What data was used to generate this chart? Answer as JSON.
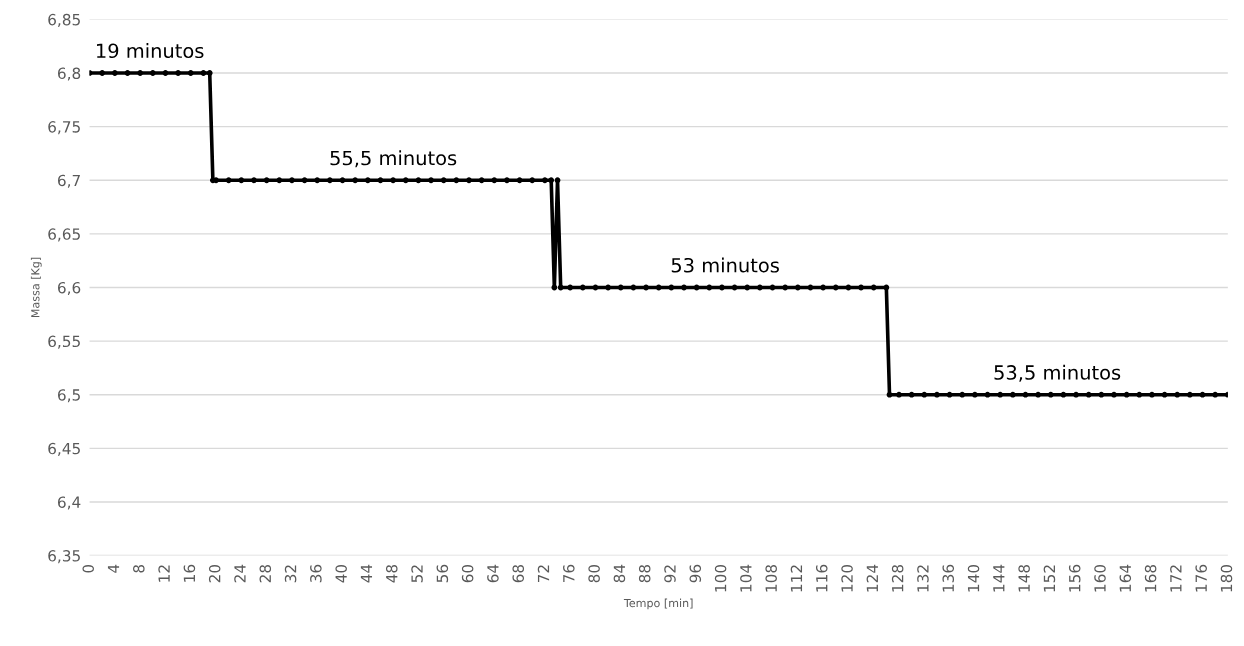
{
  "chart_data": {
    "type": "line",
    "xlabel": "Tempo [min]",
    "ylabel": "Massa [Kg]",
    "series": [
      {
        "color": "#000000",
        "x": [
          0,
          2,
          4,
          6,
          8,
          10,
          12,
          14,
          16,
          18,
          19,
          19.5,
          20,
          22,
          24,
          26,
          28,
          30,
          32,
          34,
          36,
          38,
          40,
          42,
          44,
          46,
          48,
          50,
          52,
          54,
          56,
          58,
          60,
          62,
          64,
          66,
          68,
          70,
          72,
          73,
          73.5,
          74,
          74.5,
          76,
          78,
          80,
          82,
          84,
          86,
          88,
          90,
          92,
          94,
          96,
          98,
          100,
          102,
          104,
          106,
          108,
          110,
          112,
          114,
          116,
          118,
          120,
          122,
          124,
          126,
          126.5,
          128,
          130,
          132,
          134,
          136,
          138,
          140,
          142,
          144,
          146,
          148,
          150,
          152,
          154,
          156,
          158,
          160,
          162,
          164,
          166,
          168,
          170,
          172,
          174,
          176,
          178,
          180
        ],
        "values": [
          6.8,
          6.8,
          6.8,
          6.8,
          6.8,
          6.8,
          6.8,
          6.8,
          6.8,
          6.8,
          6.8,
          6.7,
          6.7,
          6.7,
          6.7,
          6.7,
          6.7,
          6.7,
          6.7,
          6.7,
          6.7,
          6.7,
          6.7,
          6.7,
          6.7,
          6.7,
          6.7,
          6.7,
          6.7,
          6.7,
          6.7,
          6.7,
          6.7,
          6.7,
          6.7,
          6.7,
          6.7,
          6.7,
          6.7,
          6.7,
          6.6,
          6.7,
          6.6,
          6.6,
          6.6,
          6.6,
          6.6,
          6.6,
          6.6,
          6.6,
          6.6,
          6.6,
          6.6,
          6.6,
          6.6,
          6.6,
          6.6,
          6.6,
          6.6,
          6.6,
          6.6,
          6.6,
          6.6,
          6.6,
          6.6,
          6.6,
          6.6,
          6.6,
          6.6,
          6.5,
          6.5,
          6.5,
          6.5,
          6.5,
          6.5,
          6.5,
          6.5,
          6.5,
          6.5,
          6.5,
          6.5,
          6.5,
          6.5,
          6.5,
          6.5,
          6.5,
          6.5,
          6.5,
          6.5,
          6.5,
          6.5,
          6.5,
          6.5,
          6.5,
          6.5,
          6.5,
          6.5
        ]
      }
    ],
    "xlim": [
      0,
      180
    ],
    "xticks": [
      0,
      4,
      8,
      12,
      16,
      20,
      24,
      28,
      32,
      36,
      40,
      44,
      48,
      52,
      56,
      60,
      64,
      68,
      72,
      76,
      80,
      84,
      88,
      92,
      96,
      100,
      104,
      108,
      112,
      116,
      120,
      124,
      128,
      132,
      136,
      140,
      144,
      148,
      152,
      156,
      160,
      164,
      168,
      172,
      176,
      180
    ],
    "ylim": [
      6.35,
      6.85
    ],
    "yticks": [
      {
        "value": 6.35,
        "label": "6,35"
      },
      {
        "value": 6.4,
        "label": "6,4"
      },
      {
        "value": 6.45,
        "label": "6,45"
      },
      {
        "value": 6.5,
        "label": "6,5"
      },
      {
        "value": 6.55,
        "label": "6,55"
      },
      {
        "value": 6.6,
        "label": "6,6"
      },
      {
        "value": 6.65,
        "label": "6,65"
      },
      {
        "value": 6.7,
        "label": "6,7"
      },
      {
        "value": 6.75,
        "label": "6,75"
      },
      {
        "value": 6.8,
        "label": "6,8"
      },
      {
        "value": 6.85,
        "label": "6,85"
      }
    ],
    "grid": "y",
    "marker": "circle",
    "line_style": "solid",
    "annotations": [
      {
        "text": "19 minutos",
        "x": 9.5,
        "y": 6.8
      },
      {
        "text": "55,5 minutos",
        "x": 48,
        "y": 6.7
      },
      {
        "text": "53 minutos",
        "x": 100.5,
        "y": 6.6
      },
      {
        "text": "53,5 minutos",
        "x": 153,
        "y": 6.5
      }
    ]
  }
}
